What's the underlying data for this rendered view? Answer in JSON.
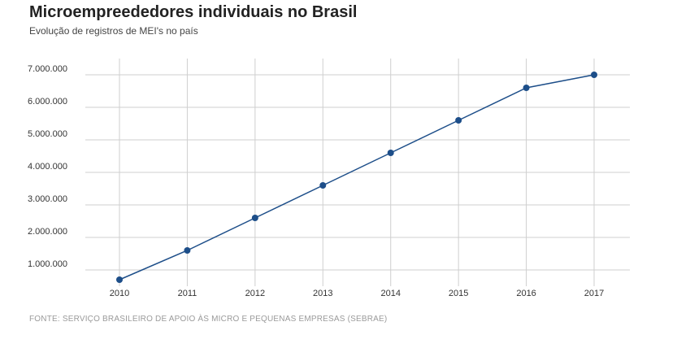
{
  "header": {
    "title": "Microempreededores individuais no Brasil",
    "subtitle": "Evolução de registros de MEI's no país"
  },
  "footer": {
    "source": "FONTE: SERVIÇO BRASILEIRO DE APOIO ÀS MICRO E PEQUENAS EMPRESAS (SEBRAE)"
  },
  "colors": {
    "line": "#1d4e89",
    "grid": "#cfcfcf",
    "point": "#1d4e89"
  },
  "chart_data": {
    "type": "line",
    "title": "Microempreededores individuais no Brasil",
    "subtitle": "Evolução de registros de MEI's no país",
    "xlabel": "",
    "ylabel": "",
    "x": [
      2010,
      2011,
      2012,
      2013,
      2014,
      2015,
      2016,
      2017
    ],
    "series": [
      {
        "values": [
          700000,
          1600000,
          2600000,
          3600000,
          4600000,
          5600000,
          6600000,
          7000000
        ]
      }
    ],
    "y_ticks": [
      "1.000.000",
      "2.000.000",
      "3.000.000",
      "4.000.000",
      "5.000.000",
      "6.000.000",
      "7.000.000"
    ],
    "x_ticks": [
      "2010",
      "2011",
      "2012",
      "2013",
      "2014",
      "2015",
      "2016",
      "2017"
    ],
    "ylim": [
      500000,
      7000000
    ],
    "grid": true,
    "legend": "none"
  }
}
